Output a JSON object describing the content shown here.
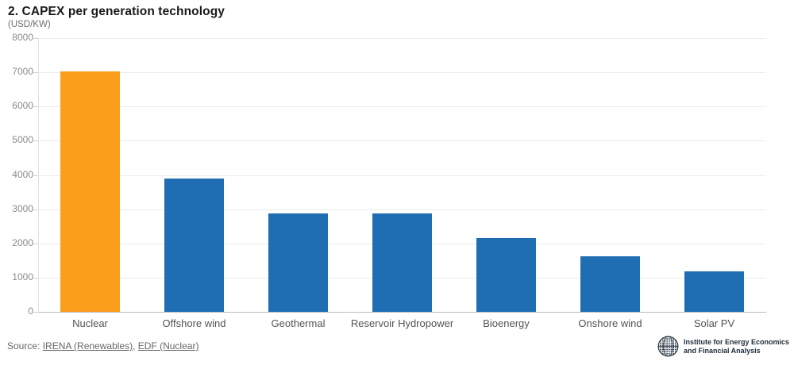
{
  "header": {
    "title": "2. CAPEX per generation technology",
    "subtitle": "(USD/KW)"
  },
  "chart_data": {
    "type": "bar",
    "categories": [
      "Nuclear",
      "Offshore wind",
      "Geothermal",
      "Reservoir Hydropower",
      "Bioenergy",
      "Onshore wind",
      "Solar PV"
    ],
    "values": [
      7020,
      3890,
      2880,
      2880,
      2150,
      1630,
      1190
    ],
    "title": "2. CAPEX per generation technology",
    "subtitle": "(USD/KW)",
    "xlabel": "",
    "ylabel": "USD/KW",
    "ylim": [
      0,
      8000
    ],
    "ytick_step": 1000,
    "grid": true,
    "legend": "none",
    "highlight_color": "#FA9E1C",
    "default_color": "#1F6DB3",
    "bar_colors": [
      "#FA9E1C",
      "#1F6DB3",
      "#1F6DB3",
      "#1F6DB3",
      "#1F6DB3",
      "#1F6DB3",
      "#1F6DB3"
    ]
  },
  "footer": {
    "source_prefix": "Source: ",
    "links": [
      {
        "label": "IRENA (Renewables)"
      },
      {
        "label": "EDF (Nuclear)"
      }
    ],
    "separator": ", "
  },
  "logo": {
    "line1": "Institute for Energy Economics",
    "line2": "and Financial Analysis",
    "color": "#1D2C3A"
  }
}
